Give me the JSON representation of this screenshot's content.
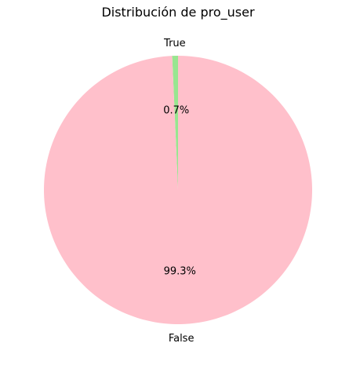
{
  "chart_data": {
    "type": "pie",
    "title": "Distribución de pro_user",
    "categories": [
      "True",
      "False"
    ],
    "values": [
      0.7,
      99.3
    ],
    "value_labels": [
      "0.7%",
      "99.3%"
    ],
    "colors": [
      "#98e690",
      "#ffc0cb"
    ]
  }
}
